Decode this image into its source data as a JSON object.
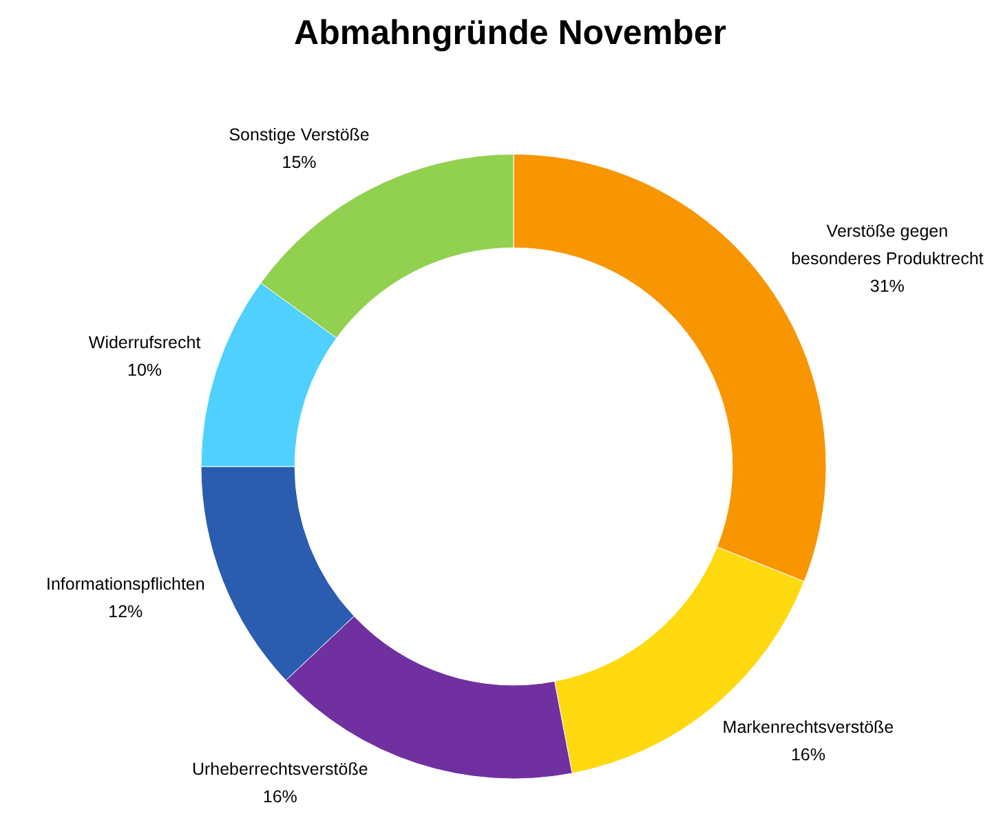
{
  "chart_data": {
    "type": "donut",
    "title": "Abmahngründe November",
    "categories": [
      "Verstöße gegen besonderes Produktrecht",
      "Markenrechtsverstöße",
      "Urheberrechtsverstöße",
      "Informationspflichten",
      "Widerrufsrecht",
      "Sonstige Verstöße"
    ],
    "values": [
      31,
      16,
      16,
      12,
      10,
      15
    ],
    "colors": [
      "#f79600",
      "#ffd910",
      "#7030a0",
      "#2a5caf",
      "#4fd0ff",
      "#92d050"
    ],
    "value_labels": [
      "31%",
      "16%",
      "16%",
      "12%",
      "10%",
      "15%"
    ]
  }
}
